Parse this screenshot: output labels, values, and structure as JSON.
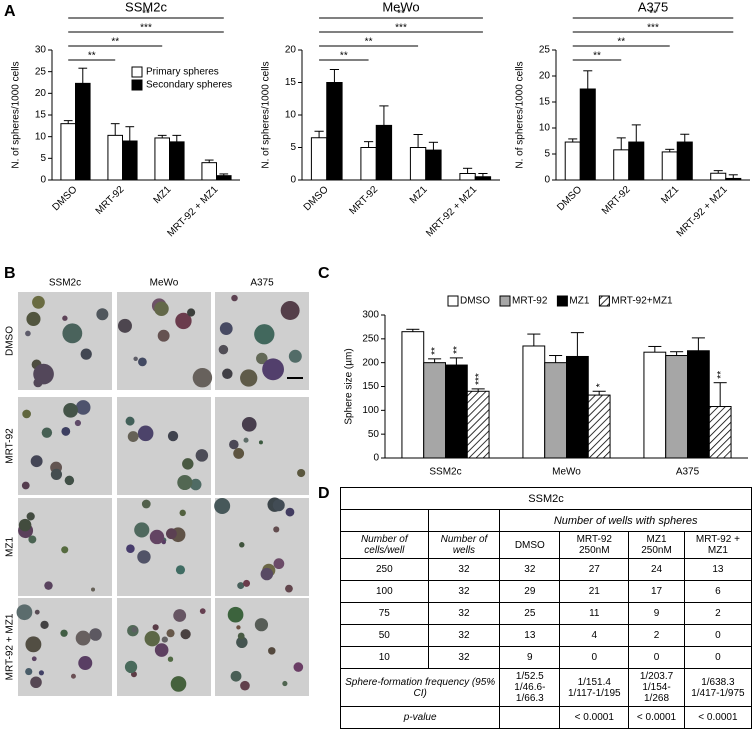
{
  "panel_labels": [
    "A",
    "B",
    "C",
    "D"
  ],
  "chart_data": [
    {
      "type": "bar",
      "title": "SSM2c",
      "ylabel": "N. of spheres/1000 cells",
      "categories": [
        "DMSO",
        "MRT-92",
        "MZ1",
        "MRT-92 + MZ1"
      ],
      "series": [
        {
          "name": "Primary spheres",
          "color": "#ffffff",
          "values": [
            13,
            10.3,
            9.7,
            4
          ],
          "errors": [
            0.7,
            2.7,
            0.6,
            0.6
          ]
        },
        {
          "name": "Secondary spheres",
          "color": "#000000",
          "values": [
            22.3,
            9,
            8.8,
            1
          ],
          "errors": [
            3.5,
            3.3,
            1.5,
            0.4
          ]
        }
      ],
      "ylim": [
        0,
        30
      ],
      "yticks": [
        0,
        5,
        10,
        15,
        20,
        25,
        30
      ],
      "legend": "upper right",
      "annotations": [
        "**",
        "***",
        "**",
        "**"
      ]
    },
    {
      "type": "bar",
      "title": "MeWo",
      "ylabel": "N. of spheres/1000 cells",
      "categories": [
        "DMSO",
        "MRT-92",
        "MZ1",
        "MRT-92 + MZ1"
      ],
      "series": [
        {
          "color": "#ffffff",
          "values": [
            6.5,
            5,
            5,
            1
          ],
          "errors": [
            1,
            0.9,
            2,
            0.8
          ]
        },
        {
          "color": "#000000",
          "values": [
            15,
            8.4,
            4.6,
            0.5
          ],
          "errors": [
            2,
            3,
            1.2,
            0.5
          ]
        }
      ],
      "ylim": [
        0,
        20
      ],
      "yticks": [
        0,
        5,
        10,
        15,
        20
      ],
      "annotations": [
        "**",
        "***",
        "**",
        "**"
      ]
    },
    {
      "type": "bar",
      "title": "A375",
      "ylabel": "N. of spheres/1000 cells",
      "categories": [
        "DMSO",
        "MRT-92",
        "MZ1",
        "MRT-92 + MZ1"
      ],
      "series": [
        {
          "color": "#ffffff",
          "values": [
            7.3,
            5.8,
            5.4,
            1.3
          ],
          "errors": [
            0.6,
            2.3,
            0.5,
            0.5
          ]
        },
        {
          "color": "#000000",
          "values": [
            17.5,
            7.3,
            7.3,
            0.3
          ],
          "errors": [
            3.5,
            3.3,
            1.5,
            0.7
          ]
        }
      ],
      "ylim": [
        0,
        25
      ],
      "yticks": [
        0,
        5,
        10,
        15,
        20,
        25
      ],
      "annotations": [
        "**",
        "***",
        "**",
        "**"
      ]
    },
    {
      "type": "bar",
      "ylabel": "Sphere size (µm)",
      "categories": [
        "SSM2c",
        "MeWo",
        "A375"
      ],
      "series": [
        {
          "name": "DMSO",
          "color": "#ffffff",
          "values": [
            265,
            235,
            222
          ],
          "errors": [
            5,
            25,
            12
          ]
        },
        {
          "name": "MRT-92",
          "color": "#a6a6a6",
          "values": [
            200,
            200,
            215
          ],
          "errors": [
            8,
            15,
            8
          ],
          "significance": [
            "**",
            null,
            null
          ]
        },
        {
          "name": "MZ1",
          "color": "#000000",
          "values": [
            195,
            213,
            225
          ],
          "errors": [
            15,
            50,
            27
          ],
          "significance": [
            "**",
            null,
            null
          ]
        },
        {
          "name": "MRT-92+MZ1",
          "color": "#ffffff",
          "pattern": "hatch",
          "values": [
            140,
            132,
            108
          ],
          "errors": [
            5,
            8,
            50
          ],
          "significance": [
            "***",
            "*",
            "**"
          ]
        }
      ],
      "ylim": [
        0,
        300
      ],
      "yticks": [
        0,
        50,
        100,
        150,
        200,
        250,
        300
      ],
      "legend": "top"
    }
  ],
  "micrographs": {
    "columns": [
      "SSM2c",
      "MeWo",
      "A375"
    ],
    "rows": [
      "DMSO",
      "MRT-92",
      "MZ1",
      "MRT-92 + MZ1"
    ]
  },
  "table": {
    "title": "SSM2c",
    "group_header": "Number of wells with spheres",
    "columns": [
      "Number of cells/well",
      "Number of wells",
      "DMSO",
      "MRT-92 250nM",
      "MZ1 250nM",
      "MRT-92 + MZ1"
    ],
    "rows": [
      [
        250,
        32,
        32,
        27,
        24,
        13
      ],
      [
        100,
        32,
        29,
        21,
        17,
        6
      ],
      [
        75,
        32,
        25,
        11,
        9,
        2
      ],
      [
        50,
        32,
        13,
        4,
        2,
        0
      ],
      [
        10,
        32,
        9,
        0,
        0,
        0
      ]
    ],
    "frequency": {
      "label": "Sphere-formation frequency (95% CI)",
      "cells": [
        [
          "1/52.5",
          "1/46.6-1/66.3"
        ],
        [
          "1/151.4",
          "1/117-1/195"
        ],
        [
          "1/203.7",
          "1/154-1/268"
        ],
        [
          "1/638.3",
          "1/417-1/975"
        ]
      ]
    },
    "p_value": {
      "label": "p-value",
      "cells": [
        null,
        "< 0.0001",
        "< 0.0001",
        "< 0.0001"
      ]
    }
  }
}
